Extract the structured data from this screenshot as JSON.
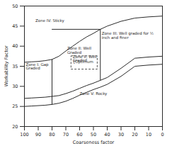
{
  "chart_data": {
    "type": "line",
    "xlabel": "Coarseness factor",
    "ylabel": "Workability Factor",
    "xlim": [
      100,
      0
    ],
    "ylim": [
      20,
      50
    ],
    "xticks": [
      100,
      90,
      80,
      70,
      60,
      50,
      40,
      30,
      20,
      10,
      0
    ],
    "yticks": [
      20,
      25,
      30,
      35,
      40,
      45,
      50
    ],
    "color": "#2a2a2a",
    "series": [
      {
        "x": [
          100,
          95,
          90,
          85,
          80,
          75,
          70,
          65,
          60,
          55,
          50,
          45,
          40,
          30,
          20,
          10,
          0
        ],
        "values": [
          36.0,
          36.1,
          36.2,
          36.4,
          36.7,
          37.5,
          38.8,
          40.0,
          41.2,
          42.3,
          43.2,
          44.2,
          45.0,
          46.2,
          47.0,
          47.3,
          47.5
        ]
      },
      {
        "x": [
          100,
          95,
          90,
          85,
          80,
          75,
          70,
          65,
          60,
          55,
          50,
          45,
          40,
          30,
          20,
          10,
          0
        ],
        "values": [
          27.0,
          27.1,
          27.2,
          27.3,
          27.5,
          27.7,
          28.2,
          28.8,
          29.5,
          30.2,
          30.8,
          31.5,
          32.2,
          34.5,
          37.0,
          37.3,
          37.5
        ]
      },
      {
        "x": [
          100,
          95,
          90,
          85,
          80,
          75,
          70,
          65,
          60,
          55,
          50,
          45,
          40,
          30,
          20,
          10,
          0
        ],
        "values": [
          25.0,
          25.1,
          25.2,
          25.3,
          25.5,
          25.8,
          26.3,
          27.0,
          27.8,
          28.5,
          29.2,
          29.8,
          30.5,
          32.5,
          35.0,
          35.3,
          35.5
        ]
      },
      {
        "x": [
          80,
          80
        ],
        "values": [
          25.5,
          36.7
        ]
      },
      {
        "x": [
          45,
          45
        ],
        "values": [
          31.5,
          44.2
        ]
      },
      {
        "x": [
          45,
          80
        ],
        "values": [
          44.2,
          44.2
        ]
      }
    ],
    "box": {
      "x": [
        66,
        47
      ],
      "y": [
        34.2,
        37.5
      ],
      "line_style": "dashed"
    },
    "annotations": [
      {
        "text": "Zone IV: Sticky",
        "x": 92,
        "y": 46.8
      },
      {
        "text": "Zone I: Gap\nGraded",
        "x": 99,
        "y": 35.8
      },
      {
        "text": "Zone II: Well\nGraded",
        "x": 69,
        "y": 39.8
      },
      {
        "text": "Zone III: Well graded for ½\ninch and finer",
        "x": 44,
        "y": 43.5
      },
      {
        "text": "Zone V: Rocky",
        "x": 60,
        "y": 28.5
      },
      {
        "text": "Zone II: Well\nGraded",
        "x": 65,
        "y": 37.8
      },
      {
        "text": "{Optimum",
        "x": 65,
        "y": 36.5
      }
    ]
  }
}
